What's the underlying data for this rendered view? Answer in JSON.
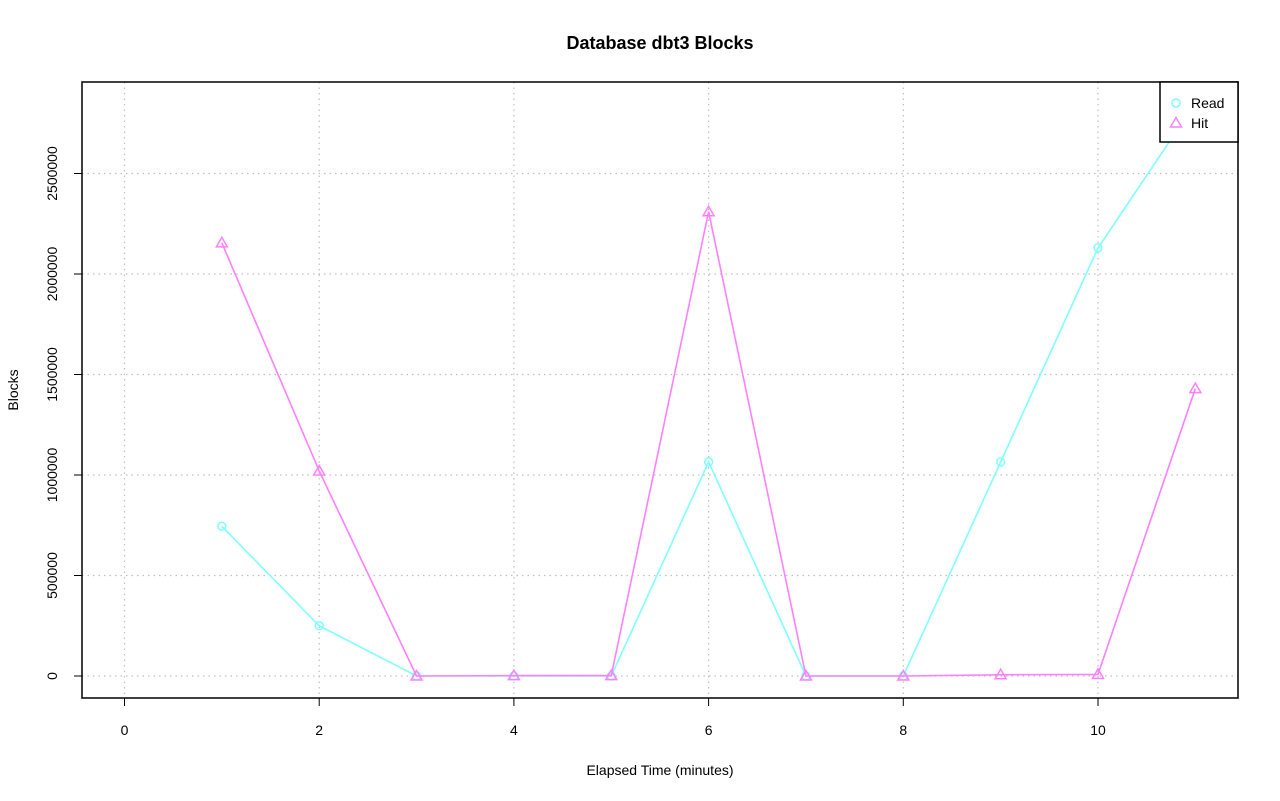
{
  "chart_data": {
    "type": "line",
    "title": "Database dbt3 Blocks",
    "xlabel": "Elapsed Time (minutes)",
    "ylabel": "Blocks",
    "xlim": [
      0,
      11
    ],
    "ylim": [
      0,
      2900000
    ],
    "xticks": [
      0,
      2,
      4,
      6,
      8,
      10
    ],
    "yticks": [
      0,
      500000,
      1000000,
      1500000,
      2000000,
      2500000
    ],
    "grid": true,
    "legend_position": "top-right",
    "x": [
      1,
      2,
      3,
      4,
      5,
      6,
      7,
      8,
      9,
      10,
      11
    ],
    "series": [
      {
        "name": "Read",
        "color": "#7fffff",
        "marker": "circle",
        "values": [
          745000,
          250000,
          0,
          0,
          0,
          1065000,
          0,
          0,
          1065000,
          2130000,
          2850000
        ]
      },
      {
        "name": "Hit",
        "color": "#ff80ff",
        "marker": "triangle",
        "values": [
          2155000,
          1020000,
          0,
          2000,
          2000,
          2310000,
          0,
          0,
          6000,
          8000,
          1430000
        ]
      }
    ]
  }
}
